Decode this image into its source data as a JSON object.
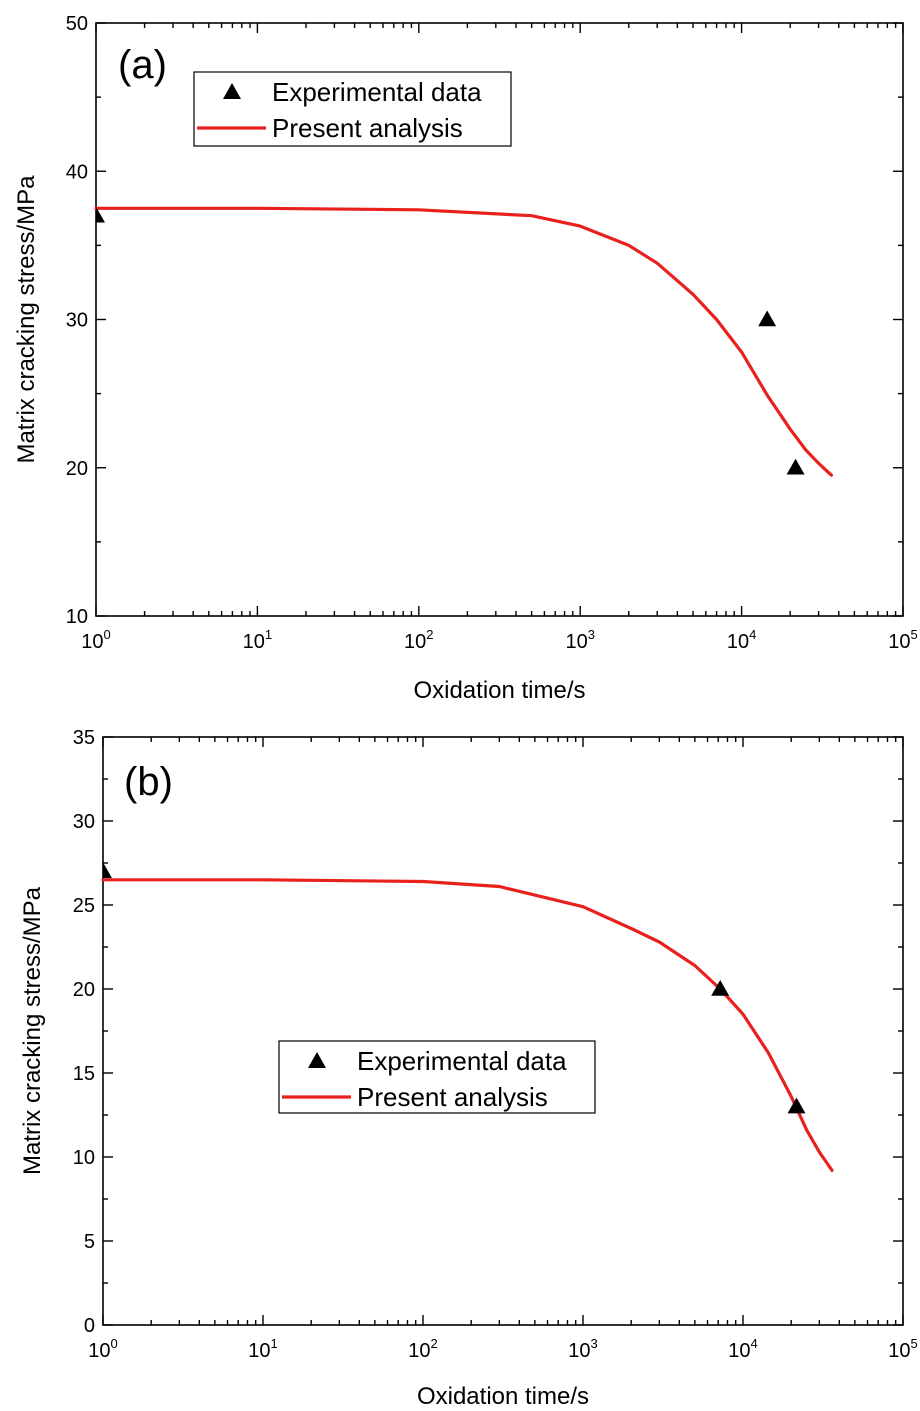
{
  "chart_data": [
    {
      "type": "line",
      "panel_label": "(a)",
      "xlabel": "Oxidation time/s",
      "ylabel": "Matrix cracking stress/MPa",
      "xscale": "log",
      "xlim": [
        1,
        100000
      ],
      "ylim": [
        10,
        50
      ],
      "x_ticks": [
        {
          "value": 1,
          "base": "10",
          "exp": "0"
        },
        {
          "value": 10,
          "base": "10",
          "exp": "1"
        },
        {
          "value": 100,
          "base": "10",
          "exp": "2"
        },
        {
          "value": 1000,
          "base": "10",
          "exp": "3"
        },
        {
          "value": 10000,
          "base": "10",
          "exp": "4"
        },
        {
          "value": 100000,
          "base": "10",
          "exp": "5"
        }
      ],
      "y_ticks": [
        "10",
        "20",
        "30",
        "40",
        "50"
      ],
      "legend_position": "top-left",
      "series": [
        {
          "name": "Experimental data",
          "kind": "scatter",
          "marker": "triangle",
          "color": "#000000",
          "x": [
            1,
            14400,
            21600
          ],
          "y": [
            37,
            30,
            20
          ]
        },
        {
          "name": "Present analysis",
          "kind": "line",
          "color": "#e8211d",
          "x": [
            1,
            10,
            100,
            500,
            1000,
            2000,
            3000,
            5000,
            7000,
            10000,
            14400,
            20000,
            25000,
            30000,
            36000
          ],
          "y": [
            37.5,
            37.5,
            37.4,
            37.0,
            36.3,
            35.0,
            33.8,
            31.7,
            30.0,
            27.8,
            24.9,
            22.6,
            21.2,
            20.3,
            19.5
          ]
        }
      ]
    },
    {
      "type": "line",
      "panel_label": "(b)",
      "xlabel": "Oxidation time/s",
      "ylabel": "Matrix cracking stress/MPa",
      "xscale": "log",
      "xlim": [
        1,
        100000
      ],
      "ylim": [
        0,
        35
      ],
      "x_ticks": [
        {
          "value": 1,
          "base": "10",
          "exp": "0"
        },
        {
          "value": 10,
          "base": "10",
          "exp": "1"
        },
        {
          "value": 100,
          "base": "10",
          "exp": "2"
        },
        {
          "value": 1000,
          "base": "10",
          "exp": "3"
        },
        {
          "value": 10000,
          "base": "10",
          "exp": "4"
        },
        {
          "value": 100000,
          "base": "10",
          "exp": "5"
        }
      ],
      "y_ticks": [
        "0",
        "5",
        "10",
        "15",
        "20",
        "25",
        "30",
        "35"
      ],
      "legend_position": "center-left",
      "series": [
        {
          "name": "Experimental data",
          "kind": "scatter",
          "marker": "triangle",
          "color": "#000000",
          "x": [
            1,
            7200,
            21600
          ],
          "y": [
            27,
            20,
            13
          ]
        },
        {
          "name": "Present analysis",
          "kind": "line",
          "color": "#e8211d",
          "x": [
            1,
            10,
            100,
            300,
            1000,
            2000,
            3000,
            5000,
            7200,
            10000,
            14400,
            20000,
            25000,
            30000,
            36000
          ],
          "y": [
            26.5,
            26.5,
            26.4,
            26.1,
            24.9,
            23.6,
            22.8,
            21.4,
            20.0,
            18.5,
            16.2,
            13.6,
            11.6,
            10.3,
            9.2
          ]
        }
      ]
    }
  ]
}
